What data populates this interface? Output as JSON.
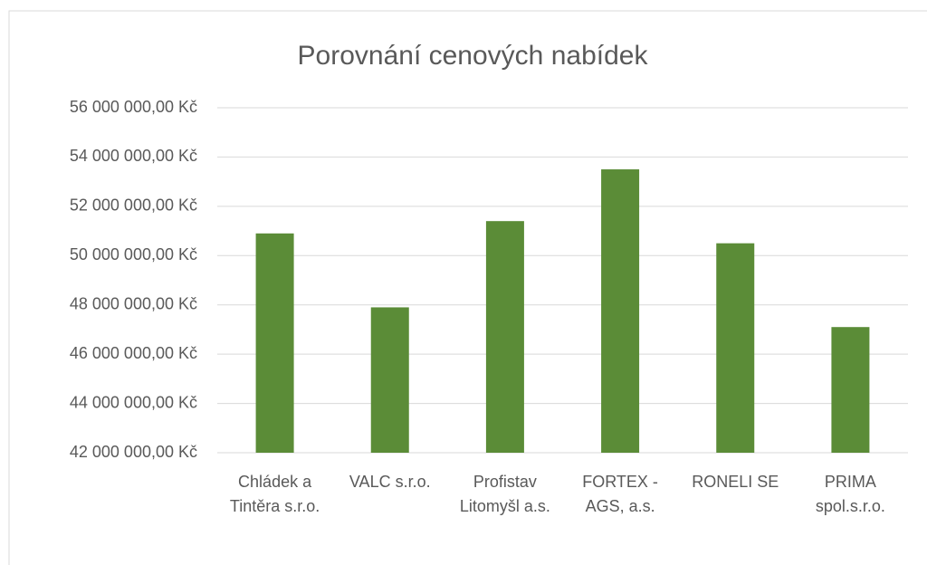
{
  "chart_data": {
    "type": "bar",
    "title": "Porovnání cenových nabídek",
    "categories": [
      "Chládek a Tintěra s.r.o.",
      "VALC s.r.o.",
      "Profistav Litomyšl a.s.",
      "FORTEX - AGS, a.s.",
      "RONELI SE",
      "PRIMA spol.s.r.o."
    ],
    "values": [
      50900000,
      47900000,
      51400000,
      53500000,
      50500000,
      47100000
    ],
    "color": "#5b8c37",
    "ylim": [
      42000000,
      56000000
    ],
    "yticks": [
      {
        "value": 42000000,
        "label": "42 000 000,00 Kč"
      },
      {
        "value": 44000000,
        "label": "44 000 000,00 Kč"
      },
      {
        "value": 46000000,
        "label": "46 000 000,00 Kč"
      },
      {
        "value": 48000000,
        "label": "48 000 000,00 Kč"
      },
      {
        "value": 50000000,
        "label": "50 000 000,00 Kč"
      },
      {
        "value": 52000000,
        "label": "52 000 000,00 Kč"
      },
      {
        "value": 54000000,
        "label": "54 000 000,00 Kč"
      },
      {
        "value": 56000000,
        "label": "56 000 000,00 Kč"
      }
    ],
    "grid": true
  }
}
